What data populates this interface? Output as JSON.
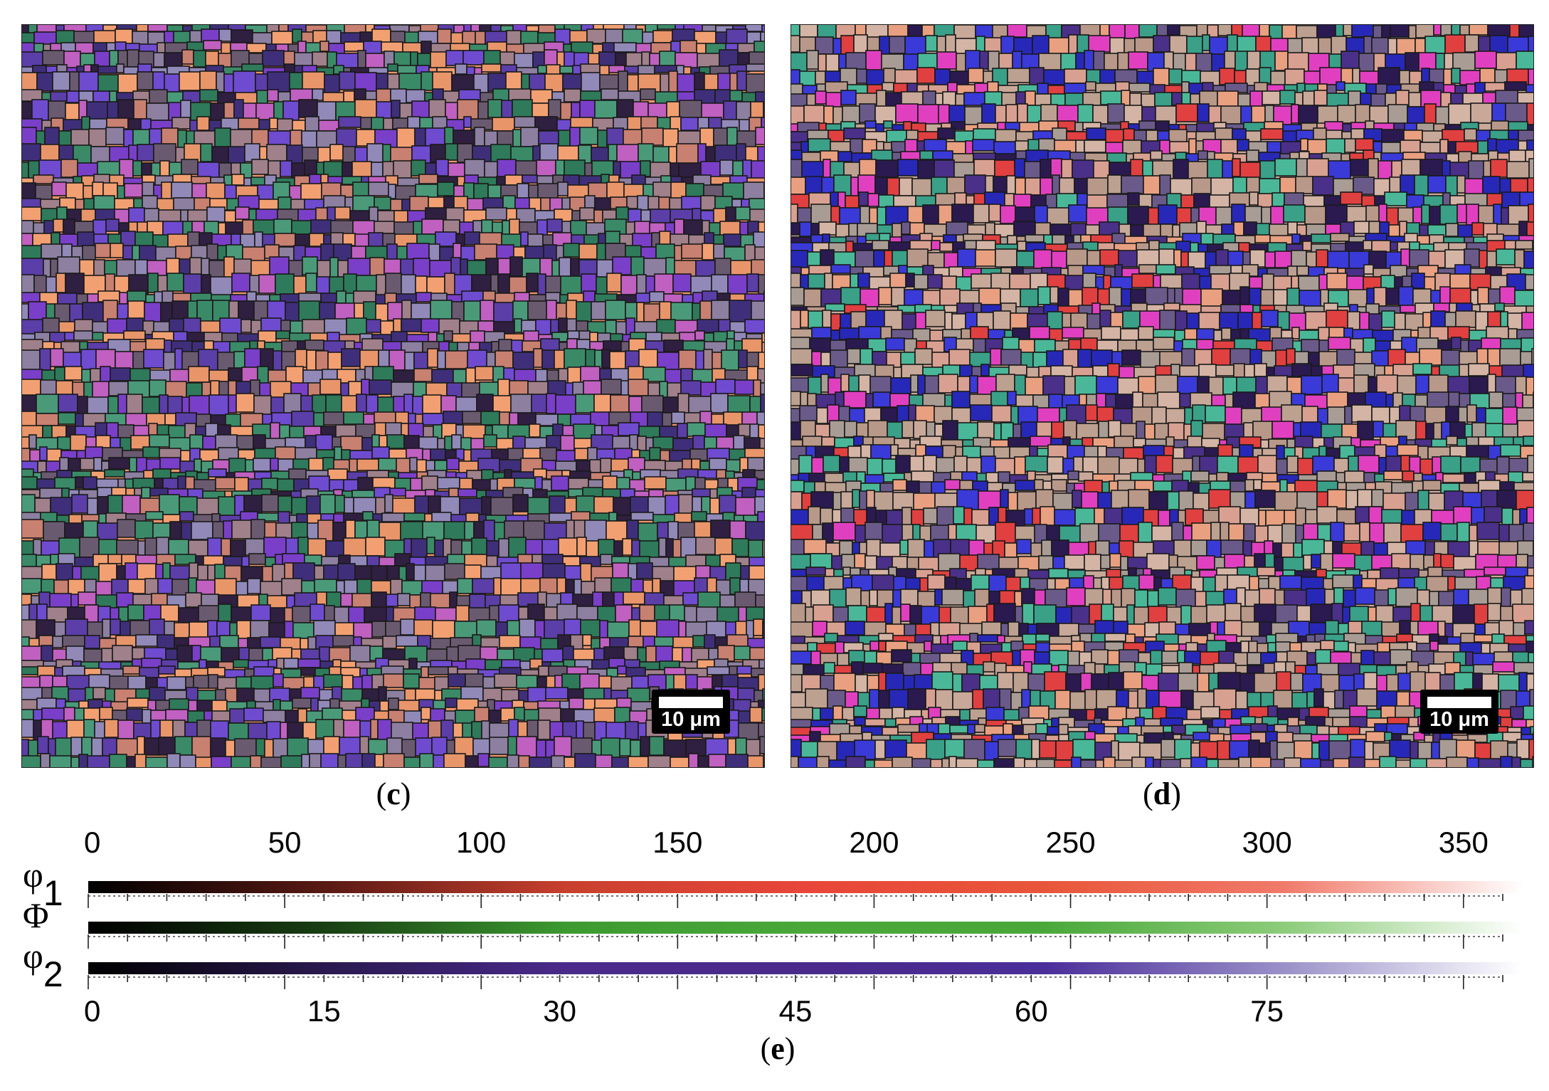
{
  "figure": {
    "panels": [
      {
        "id": "c",
        "caption_letter": "c",
        "scale_bar_label": "10 μm",
        "palette": [
          "#e8956a",
          "#f2a072",
          "#8c7fa0",
          "#9189b8",
          "#6f4bd0",
          "#7a3fc8",
          "#5b3ea8",
          "#3f2f7a",
          "#2e7a5a",
          "#3a8a68",
          "#4a9a7a",
          "#6a5a70",
          "#a0808a",
          "#c88070",
          "#2f1f40",
          "#c060c0"
        ]
      },
      {
        "id": "d",
        "caption_letter": "d",
        "scale_bar_label": "10 μm",
        "palette": [
          "#c8a898",
          "#bca090",
          "#d4b4a4",
          "#b89888",
          "#a89c94",
          "#d8a090",
          "#e8a080",
          "#3a3ad8",
          "#2828b8",
          "#4a3088",
          "#2a1a50",
          "#3aa088",
          "#4ab898",
          "#e04040",
          "#e040c0",
          "#6a5a8a"
        ]
      }
    ],
    "legend": {
      "caption_letter": "e",
      "rows": [
        {
          "symbol": "φ",
          "subscript": "1",
          "color": "#e8463a",
          "gradient": [
            "#000000",
            "#5a1a14",
            "#c8402e",
            "#e8463a",
            "#e8563a",
            "#f07a6a",
            "#ffffff"
          ]
        },
        {
          "symbol": "Φ",
          "subscript": "",
          "color": "#4aa83a",
          "gradient": [
            "#000000",
            "#1a4014",
            "#3c9a30",
            "#4aa83a",
            "#4aa83a",
            "#8ccc7a",
            "#ffffff"
          ]
        },
        {
          "symbol": "φ",
          "subscript": "2",
          "color": "#4a2a8a",
          "gradient": [
            "#000000",
            "#2a1a50",
            "#4a2a8a",
            "#4a2a8a",
            "#4a2e9a",
            "#9a90c8",
            "#ffffff"
          ]
        }
      ],
      "top_axis": {
        "min": 0,
        "max": 360,
        "ticks": [
          "0",
          "50",
          "100",
          "150",
          "200",
          "250",
          "300",
          "350"
        ]
      },
      "bottom_axis": {
        "min": 0,
        "max": 90,
        "ticks": [
          "0",
          "15",
          "30",
          "45",
          "60",
          "75"
        ]
      }
    }
  }
}
